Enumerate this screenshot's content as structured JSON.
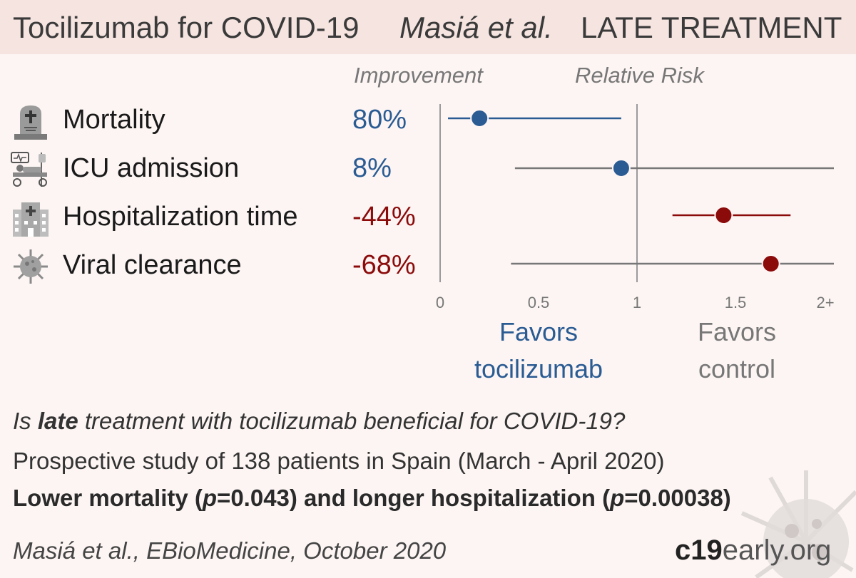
{
  "header": {
    "title": "Tocilizumab for COVID-19",
    "authors": "Masiá et al.",
    "phase": "LATE TREATMENT"
  },
  "column_headers": {
    "improvement": "Improvement",
    "relative_risk": "Relative Risk"
  },
  "outcomes": [
    {
      "label": "Mortality",
      "improvement": "80%",
      "icon": "tombstone-icon",
      "color": "#2a5b93"
    },
    {
      "label": "ICU admission",
      "improvement": "8%",
      "icon": "icu-bed-icon",
      "color": "#2a5b93"
    },
    {
      "label": "Hospitalization time",
      "improvement": "-44%",
      "icon": "hospital-icon",
      "color": "#8b0a0a"
    },
    {
      "label": "Viral clearance",
      "improvement": "-68%",
      "icon": "virus-icon",
      "color": "#8b0a0a"
    }
  ],
  "favors": {
    "left": [
      "Favors",
      "tocilizumab"
    ],
    "right": [
      "Favors",
      "control"
    ]
  },
  "footer": {
    "question_pre": "Is ",
    "question_bold": "late",
    "question_post": " treatment with tocilizumab beneficial for COVID-19?",
    "study": "Prospective study of 138 patients in Spain (March - April 2020)",
    "conclusion_a": "Lower mortality (",
    "conclusion_p1": "p",
    "conclusion_b": "=0.043) and longer hospitalization (",
    "conclusion_p2": "p",
    "conclusion_c": "=0.00038)",
    "citation": "Masiá et al., EBioMedicine, October 2020"
  },
  "brand": {
    "bold": "c19",
    "rest": "early",
    "suffix": ".org"
  },
  "colors": {
    "benefit": "#2a5b93",
    "harm": "#8b0a0a",
    "neutral": "#777777",
    "background": "#fcf5f3",
    "header_bg": "#f5e4e0"
  },
  "chart_data": {
    "type": "scatter",
    "xlabel": "",
    "ylabel": "",
    "xlim": [
      0,
      2
    ],
    "x_ticks": [
      "0",
      "0.5",
      "1",
      "1.5",
      "2+"
    ],
    "x_tick_values": [
      0,
      0.5,
      1,
      1.5,
      2
    ],
    "reference_line": 1,
    "categories": [
      "Mortality",
      "ICU admission",
      "Hospitalization time",
      "Viral clearance"
    ],
    "points": [
      {
        "outcome": "Mortality",
        "rr": 0.2,
        "ci_low": 0.04,
        "ci_high": 0.92,
        "color": "#2a5b93",
        "line_color": "#2a5b93"
      },
      {
        "outcome": "ICU admission",
        "rr": 0.92,
        "ci_low": 0.38,
        "ci_high": 2.0,
        "color": "#2a5b93",
        "line_color": "#777777"
      },
      {
        "outcome": "Hospitalization time",
        "rr": 1.44,
        "ci_low": 1.18,
        "ci_high": 1.78,
        "color": "#8b0a0a",
        "line_color": "#8b0a0a"
      },
      {
        "outcome": "Viral clearance",
        "rr": 1.68,
        "ci_low": 0.36,
        "ci_high": 2.0,
        "color": "#8b0a0a",
        "line_color": "#777777"
      }
    ]
  }
}
